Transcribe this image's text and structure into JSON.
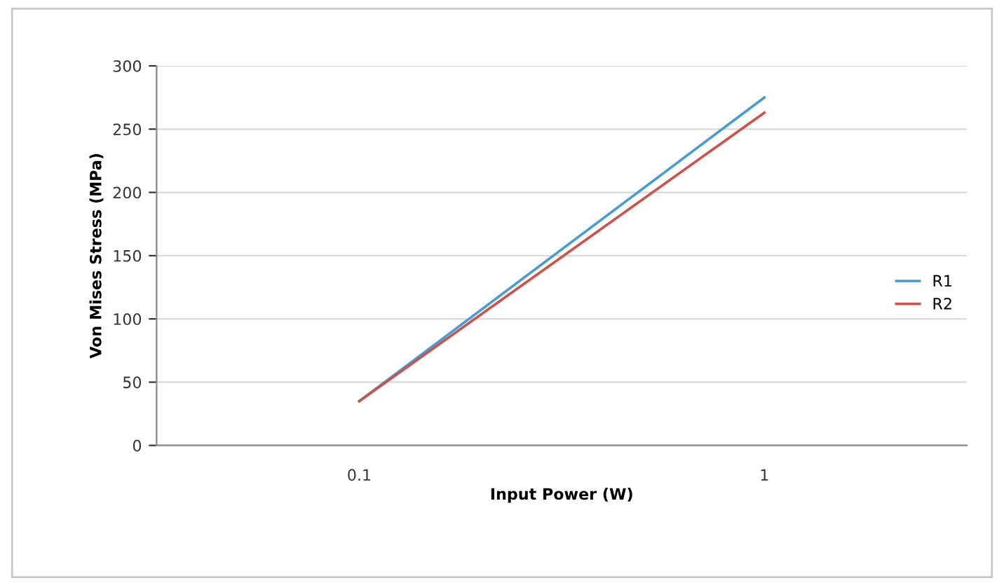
{
  "chart_data": {
    "type": "line",
    "xlabel": "Input Power (W)",
    "ylabel": "Von Mises Stress (MPa)",
    "x": [
      0.1,
      1
    ],
    "series": [
      {
        "name": "R1",
        "color": "#4a9bd0",
        "values": [
          35,
          275
        ]
      },
      {
        "name": "R2",
        "color": "#d0504a",
        "values": [
          35,
          263
        ]
      }
    ],
    "log": "x",
    "xlim": [
      0.0316,
      3.16
    ],
    "xticks": [
      0.1,
      1
    ],
    "ylim": [
      0,
      300
    ],
    "yticks": [
      0,
      50,
      100,
      150,
      200,
      250,
      300
    ],
    "grid": "y",
    "legend": "right",
    "marker": "none",
    "line_style": "solid"
  }
}
